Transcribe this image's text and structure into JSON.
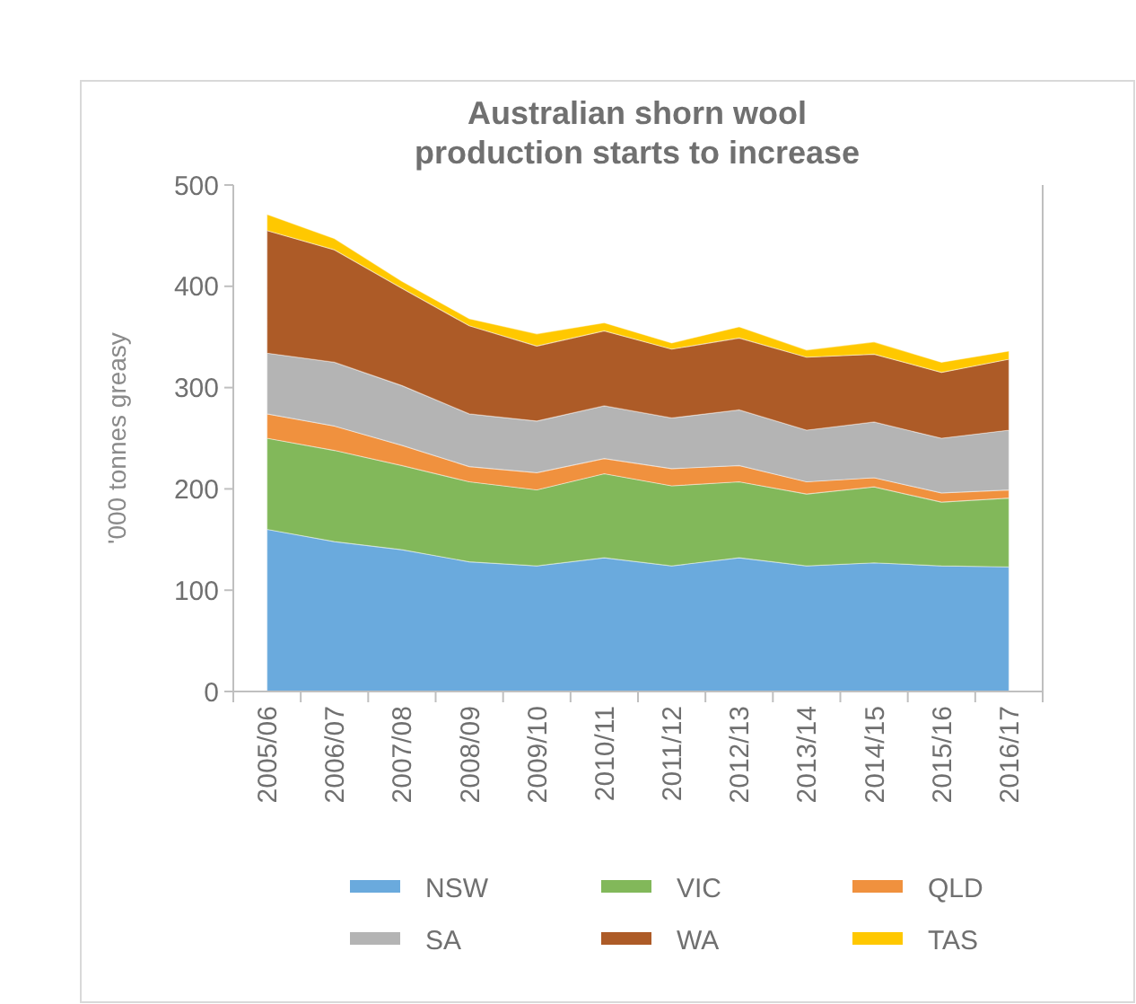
{
  "chart_data": {
    "type": "area",
    "stacked": true,
    "title": "Australian shorn wool\nproduction starts to increase",
    "ylabel": "'000 tonnes greasy",
    "categories": [
      "2005/06",
      "2006/07",
      "2007/08",
      "2008/09",
      "2009/10",
      "2010/11",
      "2011/12",
      "2012/13",
      "2013/14",
      "2014/15",
      "2015/16",
      "2016/17"
    ],
    "ylim": [
      0,
      500
    ],
    "yticks": [
      0,
      100,
      200,
      300,
      400,
      500
    ],
    "grid": false,
    "legend": "bottom",
    "series": [
      {
        "name": "NSW",
        "color": "#6aaadd",
        "values": [
          160,
          148,
          140,
          128,
          124,
          132,
          124,
          132,
          124,
          127,
          124,
          123
        ]
      },
      {
        "name": "VIC",
        "color": "#82b85a",
        "values": [
          90,
          90,
          83,
          79,
          75,
          83,
          79,
          75,
          71,
          75,
          63,
          68
        ]
      },
      {
        "name": "QLD",
        "color": "#f0913e",
        "values": [
          24,
          24,
          20,
          15,
          17,
          15,
          17,
          16,
          12,
          9,
          9,
          8
        ]
      },
      {
        "name": "SA",
        "color": "#b4b4b4",
        "values": [
          60,
          63,
          59,
          52,
          51,
          52,
          50,
          55,
          51,
          55,
          54,
          59
        ]
      },
      {
        "name": "WA",
        "color": "#ad5b27",
        "values": [
          121,
          111,
          96,
          87,
          74,
          74,
          68,
          71,
          72,
          67,
          65,
          70
        ]
      },
      {
        "name": "TAS",
        "color": "#ffc800",
        "values": [
          16,
          11,
          7,
          7,
          12,
          8,
          6,
          11,
          7,
          12,
          10,
          8
        ]
      }
    ]
  }
}
